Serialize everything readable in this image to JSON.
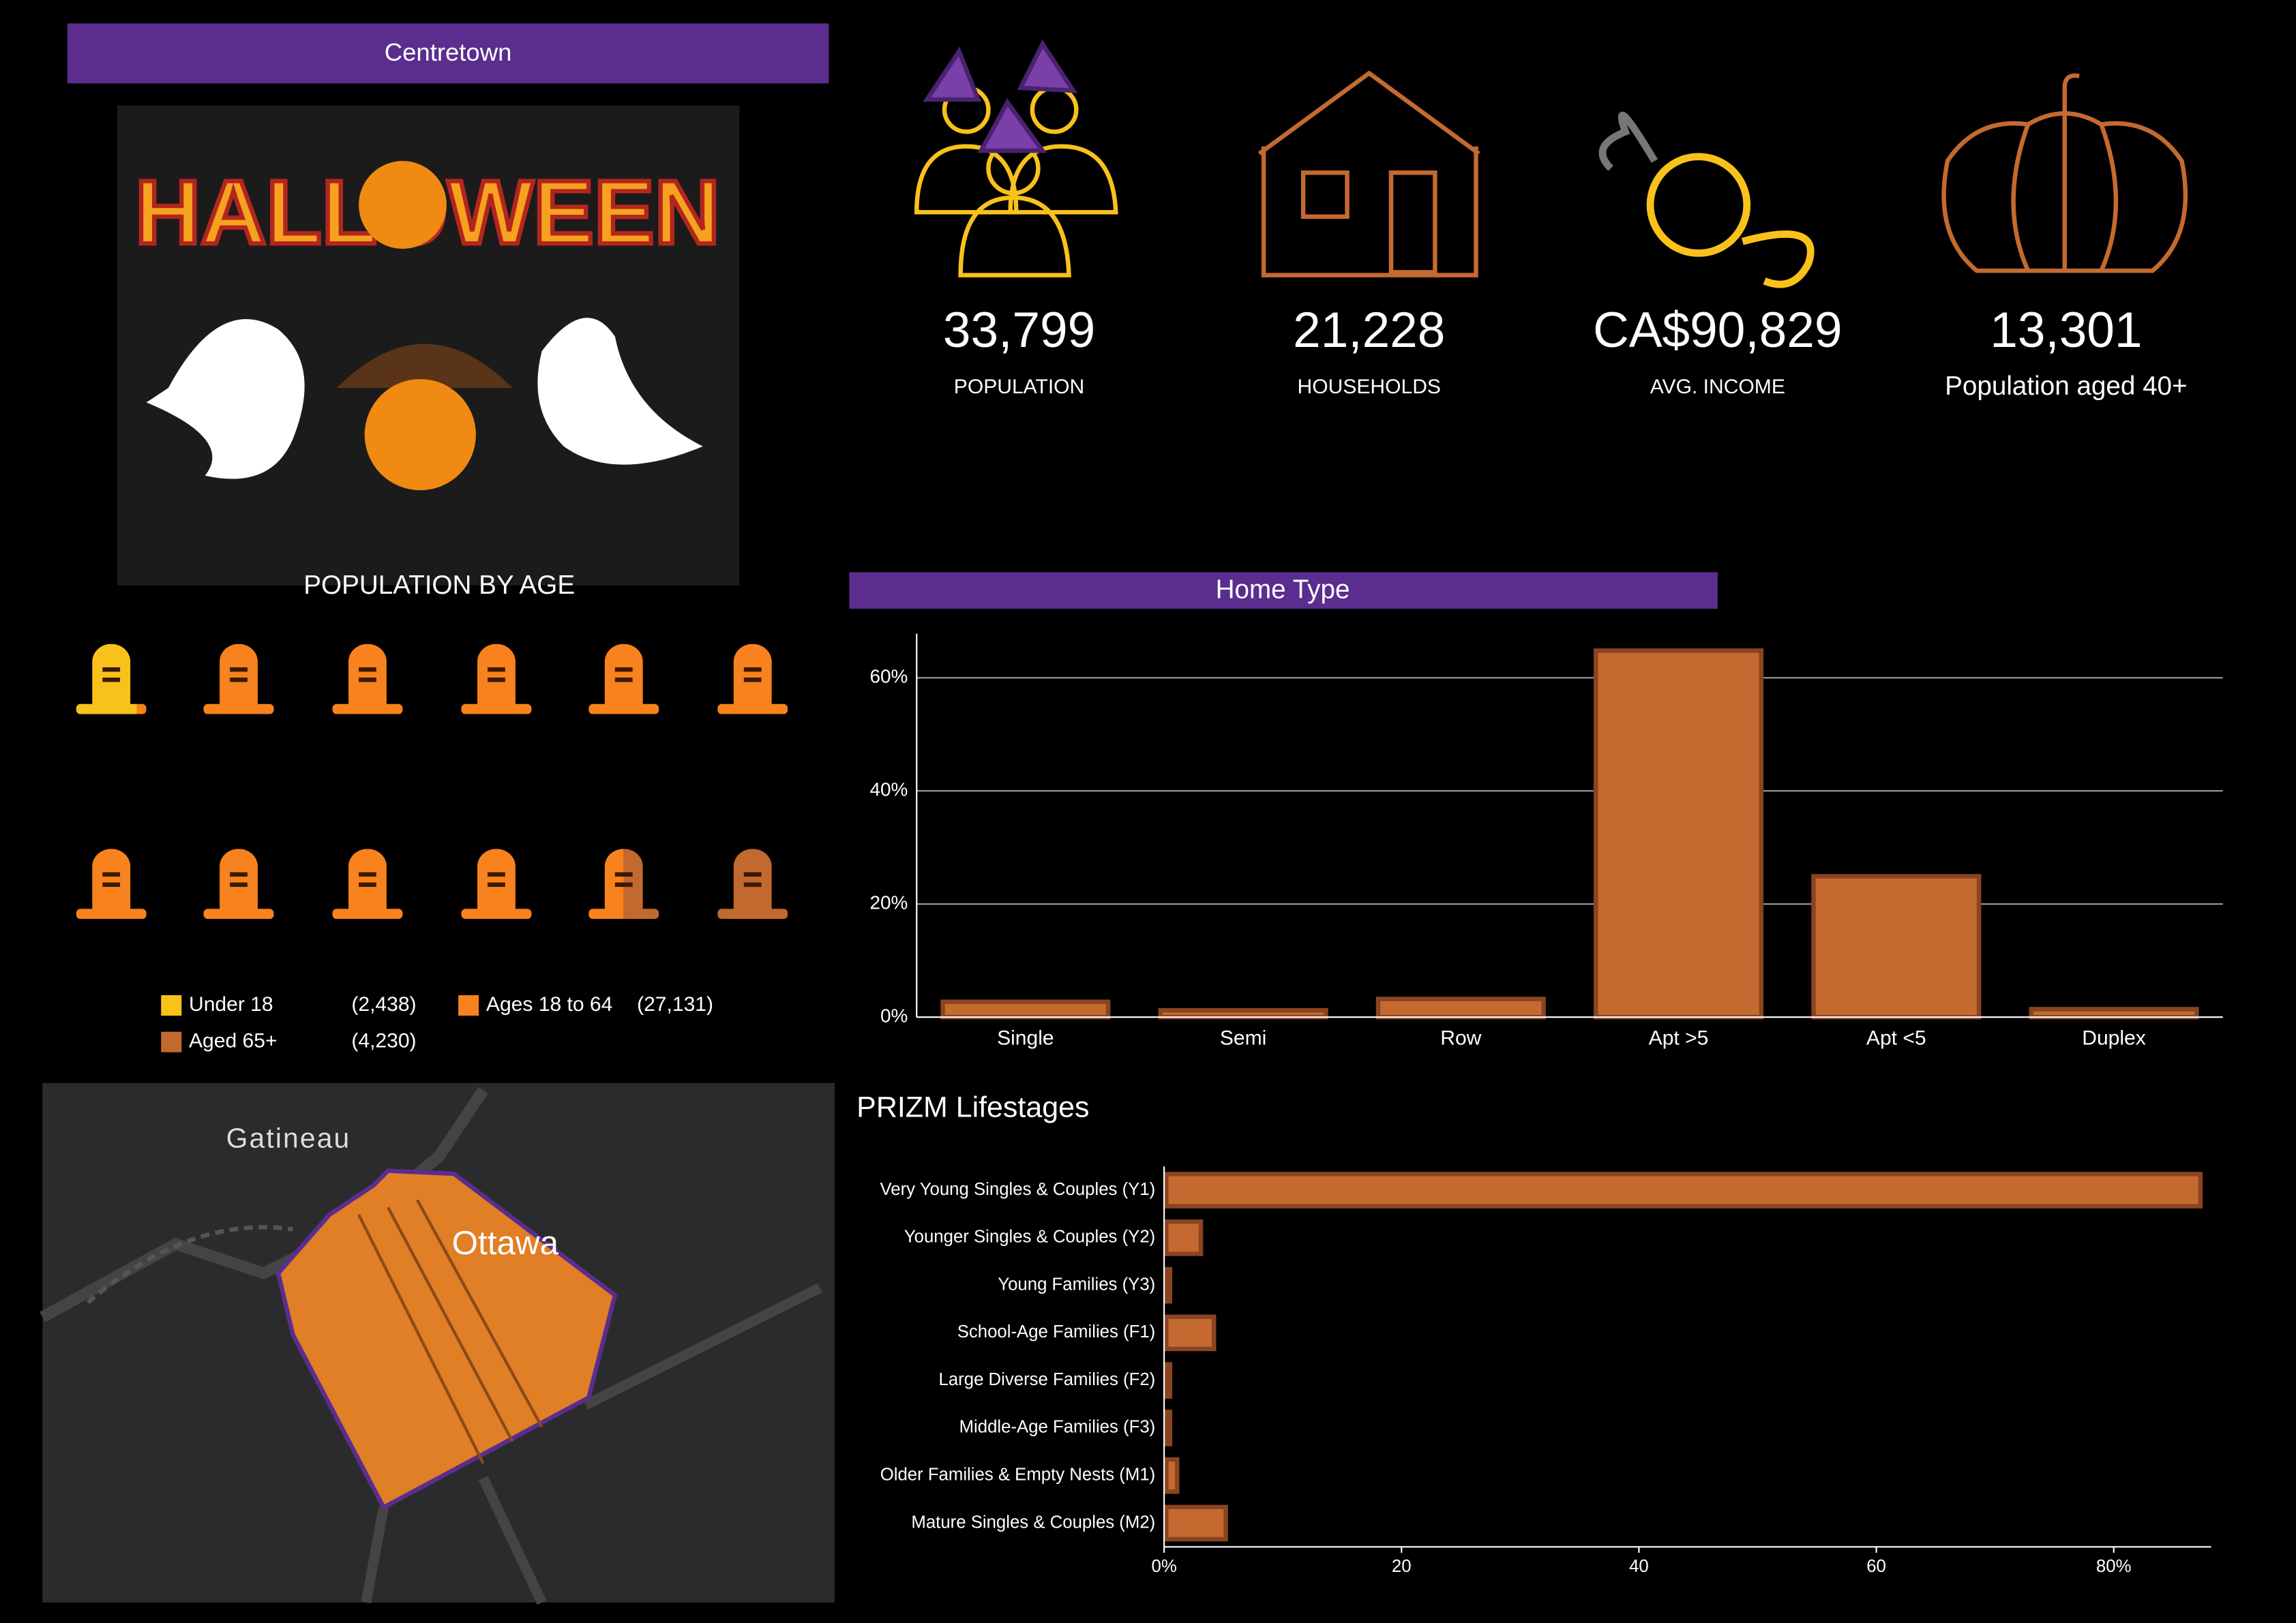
{
  "header": {
    "title": "Centretown"
  },
  "image": {
    "text": "HALLOWEEN"
  },
  "kpis": [
    {
      "value": "33,799",
      "label": "POPULATION"
    },
    {
      "value": "21,228",
      "label": "HOUSEHOLDS"
    },
    {
      "value": "CA$90,829",
      "label": "AVG. INCOME"
    },
    {
      "value": "13,301",
      "label": "Population aged 40+"
    }
  ],
  "age": {
    "title": "POPULATION BY AGE",
    "groups": [
      {
        "name": "Under 18",
        "value": 2438,
        "value_label": "(2,438)",
        "color": "#f9c21b"
      },
      {
        "name": "Ages 18 to 64",
        "value": 27131,
        "value_label": "(27,131)",
        "color": "#f7821e"
      },
      {
        "name": "Aged 65+",
        "value": 4230,
        "value_label": "(4,230)",
        "color": "#c1692f"
      }
    ]
  },
  "map": {
    "labels": [
      "Gatineau",
      "Ottawa"
    ]
  },
  "chart_data": [
    {
      "type": "bar",
      "title": "Home Type",
      "orientation": "vertical",
      "categories": [
        "Single",
        "Semi",
        "Row",
        "Apt >5",
        "Apt <5",
        "Duplex"
      ],
      "values": [
        3.1,
        1.6,
        3.6,
        65.2,
        25.3,
        1.8
      ],
      "color": "#c46a30",
      "edge_color": "#8a4420",
      "ylim": [
        0,
        67.8
      ],
      "yticks": [
        {
          "value": 0,
          "label": "0%"
        },
        {
          "value": 20,
          "label": "20%"
        },
        {
          "value": 40,
          "label": "40%"
        },
        {
          "value": 60,
          "label": "60%"
        }
      ],
      "grid": true
    },
    {
      "type": "bar",
      "title": "PRIZM Lifestages",
      "orientation": "horizontal",
      "categories": [
        "Very Young Singles & Couples (Y1)",
        "Younger Singles & Couples (Y2)",
        "Young Families (Y3)",
        "School-Age Families (F1)",
        "Large Diverse Families (F2)",
        "Middle-Age Families (F3)",
        "Older Families & Empty Nests (M1)",
        "Mature Singles & Couples (M2)"
      ],
      "values": [
        87.3,
        3.1,
        0.5,
        4.2,
        0.5,
        0.5,
        1.1,
        5.2
      ],
      "color": "#c46a30",
      "edge_color": "#8a4420",
      "xlim": [
        0,
        88.2
      ],
      "xticks": [
        {
          "value": 0,
          "label": "0%"
        },
        20,
        40,
        60,
        {
          "value": 80,
          "label": "80%"
        }
      ],
      "grid": false
    }
  ]
}
